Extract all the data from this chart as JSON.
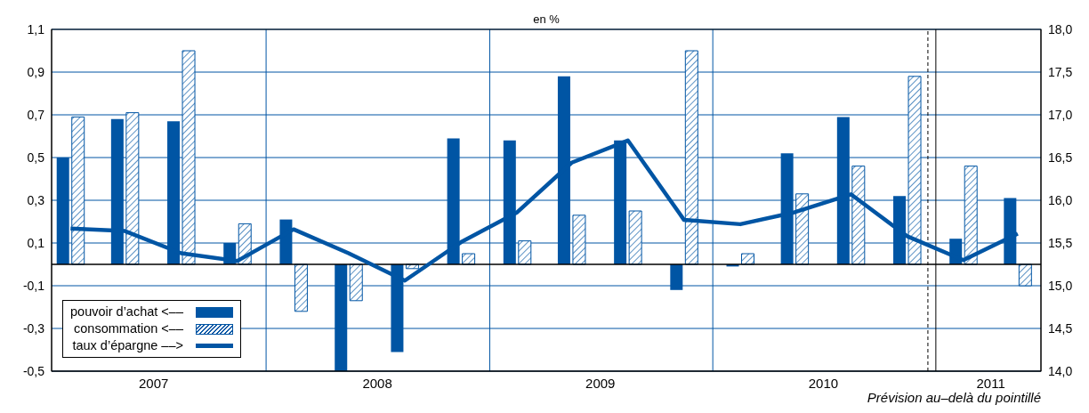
{
  "chart_data": {
    "type": "bar",
    "title": "en %",
    "x": [
      "2007-02-15",
      "2007-05-15",
      "2007-08-15",
      "2007-11-15",
      "2008-02-15",
      "2008-05-15",
      "2008-08-15",
      "2008-11-15",
      "2009-02-15",
      "2009-05-15",
      "2009-08-15",
      "2009-11-15",
      "2010-02-15",
      "2010-05-15",
      "2010-08-15",
      "2010-11-15",
      "2011-02-15",
      "2011-05-15"
    ],
    "series": [
      {
        "name": "pouvoir d’achat <––",
        "color": "#0055a4",
        "values": [
          0.5,
          0.68,
          0.67,
          0.1,
          0.21,
          -0.5,
          -0.41,
          0.59,
          0.58,
          0.88,
          0.58,
          -0.12,
          -0.01,
          0.52,
          0.69,
          0.32,
          0.12,
          0.31
        ]
      },
      {
        "name": "consommation <––",
        "color": "#0055a4",
        "values": [
          0.69,
          0.71,
          1.0,
          0.19,
          -0.22,
          -0.17,
          -0.02,
          0.05,
          0.11,
          0.23,
          0.25,
          1.0,
          0.05,
          0.33,
          0.46,
          0.88,
          0.46,
          -0.1
        ]
      },
      {
        "name": "taux d’épargne ––>",
        "type": "line",
        "axis": "y2",
        "color": "#0055a4",
        "values": [
          15.67,
          15.64,
          15.38,
          15.29,
          15.66,
          15.38,
          15.06,
          15.51,
          15.86,
          16.44,
          16.7,
          15.77,
          15.72,
          15.86,
          16.07,
          15.58,
          15.3,
          15.61
        ]
      }
    ],
    "xlim": [
      "2007-01-15",
      "2011-06-22"
    ],
    "xticks": [
      {
        "value": "2007-07-01",
        "label": "2007"
      },
      {
        "value": "2008-07-01",
        "label": "2008"
      },
      {
        "value": "2009-07-01",
        "label": "2009"
      },
      {
        "value": "2010-07-01",
        "label": "2010"
      },
      {
        "value": "2011-04-01",
        "label": "2011"
      }
    ],
    "ylim": [
      -0.5,
      1.1
    ],
    "yticks": [
      {
        "value": -0.5,
        "label": "-0,5"
      },
      {
        "value": -0.3,
        "label": "-0,3"
      },
      {
        "value": -0.1,
        "label": "-0,1"
      },
      {
        "value": 0.1,
        "label": "0,1"
      },
      {
        "value": 0.3,
        "label": "0,3"
      },
      {
        "value": 0.5,
        "label": "0,5"
      },
      {
        "value": 0.7,
        "label": "0,7"
      },
      {
        "value": 0.9,
        "label": "0,9"
      },
      {
        "value": 1.1,
        "label": "1,1"
      }
    ],
    "y2lim": [
      14.0,
      18.0
    ],
    "y2ticks": [
      {
        "value": 14,
        "label": "14,0"
      },
      {
        "value": 14.5,
        "label": "14,5"
      },
      {
        "value": 15,
        "label": "15,0"
      },
      {
        "value": 15.5,
        "label": "15,5"
      },
      {
        "value": 16,
        "label": "16,0"
      },
      {
        "value": 16.5,
        "label": "16,5"
      },
      {
        "value": 17,
        "label": "17,0"
      },
      {
        "value": 17.5,
        "label": "17,5"
      },
      {
        "value": 18,
        "label": "18,0"
      }
    ],
    "ref_lines": [
      {
        "axis": "x",
        "value": "2008-01-01",
        "color": "#0055a4",
        "line_style": "solid"
      },
      {
        "axis": "x",
        "value": "2009-01-01",
        "color": "#0055a4",
        "line_style": "solid"
      },
      {
        "axis": "x",
        "value": "2010-01-01",
        "color": "#0055a4",
        "line_style": "solid"
      },
      {
        "axis": "x",
        "value": "2011-01-01",
        "color": "#000000",
        "line_style": "solid"
      },
      {
        "axis": "x",
        "value": "2010-12-19",
        "color": "#000000",
        "line_style": "dashed",
        "label": "Prévision au–delà du pointillé"
      }
    ],
    "grid": "y",
    "legend": "bottom left"
  }
}
